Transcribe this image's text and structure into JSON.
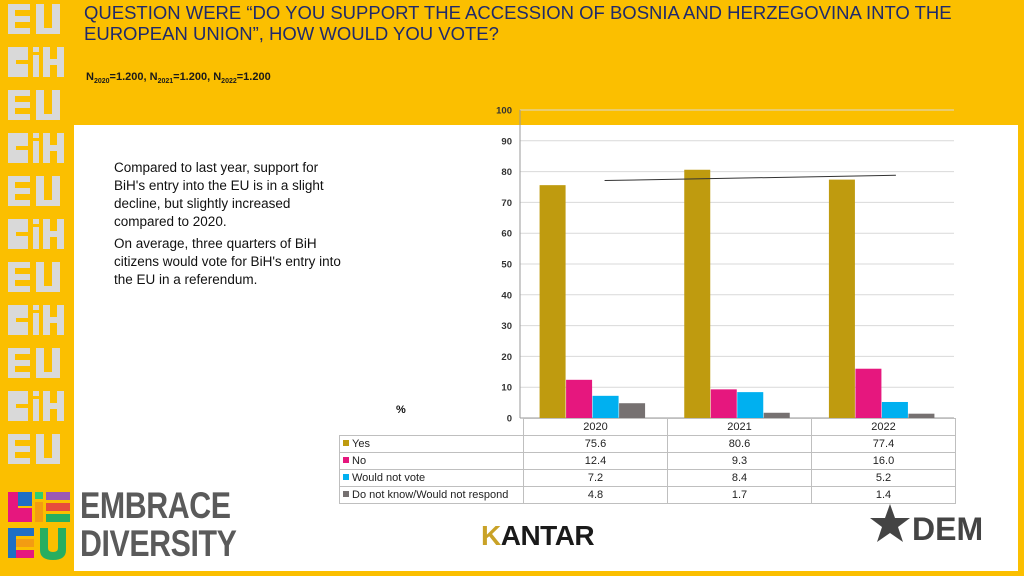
{
  "title": "QUESTION WERE “DO YOU SUPPORT THE ACCESSION OF BOSNIA AND HERZEGOVINA INTO THE EUROPEAN UNION”, HOW WOULD YOU VOTE?",
  "sample": {
    "n_label": "N",
    "items": [
      {
        "sub": "2020",
        "value": "=1.200, "
      },
      {
        "sub": "2021",
        "value": "=1.200, "
      },
      {
        "sub": "2022",
        "value": "=1.200"
      }
    ]
  },
  "description": [
    "Compared to last year, support for BiH's entry into the EU is in a slight decline, but slightly increased compared to 2020.",
    "On average, three quarters of BiH citizens would vote for BiH's entry into the EU in a referendum."
  ],
  "unit_label": "%",
  "logos": {
    "embrace_line1": "EMBRACE",
    "embrace_line2": "DIVERSITY",
    "kantar_k": "K",
    "kantar_rest": "ANTAR",
    "dem": "DEM",
    "sidebar_mark": "BiH EU"
  },
  "colors": {
    "background": "#fbbf00",
    "yes": "#bf9b0f",
    "no": "#e6177e",
    "would_not_vote": "#00b0f0",
    "dont_know": "#767171",
    "title": "#1f2a6b"
  },
  "chart_data": {
    "type": "bar",
    "categories": [
      "2020",
      "2021",
      "2022"
    ],
    "series": [
      {
        "name": "Yes",
        "values": [
          75.6,
          80.6,
          77.4
        ],
        "labels": [
          "75.6",
          "80.6",
          "77.4"
        ]
      },
      {
        "name": "No",
        "values": [
          12.4,
          9.3,
          16.0
        ],
        "labels": [
          "12.4",
          "9.3",
          "16.0"
        ]
      },
      {
        "name": "Would not vote",
        "values": [
          7.2,
          8.4,
          5.2
        ],
        "labels": [
          "7.2",
          "8.4",
          "5.2"
        ]
      },
      {
        "name": "Do not know/Would not respond",
        "values": [
          4.8,
          1.7,
          1.4
        ],
        "labels": [
          "4.8",
          "1.7",
          "1.4"
        ]
      }
    ],
    "trendline": {
      "series": "Yes",
      "start": 77.1,
      "end": 78.8
    },
    "ylim": [
      0,
      100
    ],
    "yticks": [
      0,
      10,
      20,
      30,
      40,
      50,
      60,
      70,
      80,
      90,
      100
    ],
    "ylabel": "%",
    "grid": true,
    "legend": "data-table"
  }
}
